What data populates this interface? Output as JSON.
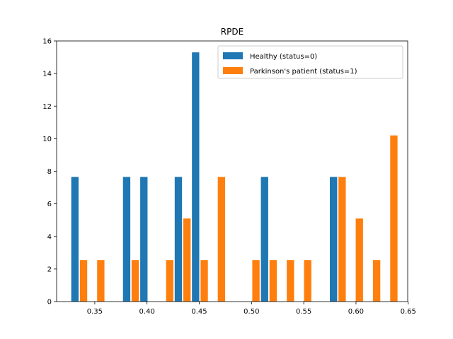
{
  "chart_data": {
    "type": "bar",
    "title": "RPDE",
    "xlabel": "",
    "ylabel": "",
    "xlim": [
      0.3135,
      0.6495
    ],
    "ylim": [
      0,
      16
    ],
    "xticks": [
      0.35,
      0.4,
      0.45,
      0.5,
      0.55,
      0.6,
      0.65
    ],
    "xtick_labels": [
      "0.35",
      "0.40",
      "0.45",
      "0.50",
      "0.55",
      "0.60",
      "0.65"
    ],
    "yticks": [
      0,
      2,
      4,
      6,
      8,
      10,
      12,
      14,
      16
    ],
    "ytick_labels": [
      "0",
      "2",
      "4",
      "6",
      "8",
      "10",
      "12",
      "14",
      "16"
    ],
    "bin_width": 0.0165,
    "bins_start": [
      0.3275,
      0.344,
      0.3605,
      0.377,
      0.3935,
      0.41,
      0.4265,
      0.443,
      0.4595,
      0.476,
      0.4925,
      0.509,
      0.5255,
      0.542,
      0.5585,
      0.575,
      0.5915,
      0.608,
      0.6245
    ],
    "grid": false,
    "legend_position": "top-right",
    "series": [
      {
        "name": "Healthy (status=0)",
        "color": "#1f77b4",
        "values": [
          7.65,
          0,
          0,
          7.65,
          7.65,
          0,
          7.65,
          15.3,
          0,
          0,
          0,
          7.65,
          0,
          0,
          0,
          7.65,
          0,
          0,
          0
        ]
      },
      {
        "name": "Parkinson's patient (status=1)",
        "color": "#ff7f0e",
        "values": [
          2.55,
          2.55,
          0,
          2.55,
          0,
          2.55,
          5.1,
          2.55,
          7.65,
          0,
          2.55,
          2.55,
          2.55,
          2.55,
          0,
          7.65,
          5.1,
          2.55,
          10.2
        ]
      }
    ]
  }
}
